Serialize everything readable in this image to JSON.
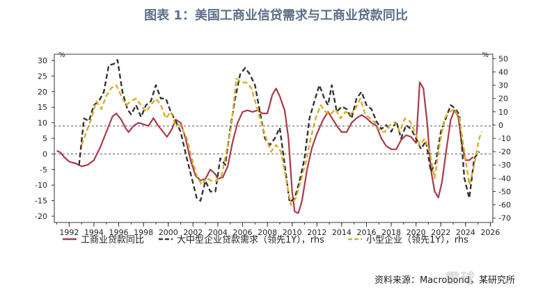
{
  "title": "图表 1：美国工商业信贷需求与工商业贷款同比",
  "source": "资料来源：Macrobond，某研究所",
  "watermark": "雪球",
  "chart_data": {
    "type": "line",
    "left_axis": {
      "unit": "%",
      "ylim": [
        -22,
        32
      ],
      "ticks": [
        -20,
        -15,
        -10,
        -5,
        0,
        5,
        10,
        15,
        20,
        25,
        30
      ]
    },
    "right_axis": {
      "unit": "%",
      "ylim": [
        -73.3,
        53.3
      ],
      "ticks": [
        -70,
        -60,
        -50,
        -40,
        -30,
        -20,
        -10,
        0,
        10,
        20,
        30,
        40,
        50
      ]
    },
    "xlim": [
      1990.8,
      2026.2
    ],
    "xticks": [
      1992,
      1994,
      1996,
      1998,
      2000,
      2002,
      2004,
      2006,
      2008,
      2010,
      2012,
      2014,
      2016,
      2018,
      2020,
      2022,
      2024,
      2026
    ],
    "reference_lines": [
      {
        "axis": "left",
        "y": 0
      },
      {
        "axis": "left",
        "y": 9
      }
    ],
    "series": [
      {
        "name": "工商业贷款同比",
        "axis": "left",
        "color": "#a83a4a",
        "style": "solid",
        "points": [
          [
            1991.0,
            1.0
          ],
          [
            1991.3,
            0.5
          ],
          [
            1991.6,
            -1.0
          ],
          [
            1992.0,
            -2.5
          ],
          [
            1992.5,
            -3.0
          ],
          [
            1993.0,
            -4.0
          ],
          [
            1993.5,
            -3.5
          ],
          [
            1994.0,
            -2.0
          ],
          [
            1994.5,
            2.0
          ],
          [
            1995.0,
            7.0
          ],
          [
            1995.5,
            12.0
          ],
          [
            1995.8,
            13.0
          ],
          [
            1996.2,
            11.0
          ],
          [
            1996.6,
            8.0
          ],
          [
            1996.8,
            7.0
          ],
          [
            1997.2,
            9.0
          ],
          [
            1997.6,
            10.0
          ],
          [
            1998.0,
            9.5
          ],
          [
            1998.4,
            9.0
          ],
          [
            1998.8,
            11.5
          ],
          [
            1999.2,
            9.0
          ],
          [
            1999.6,
            7.0
          ],
          [
            1999.9,
            5.5
          ],
          [
            2000.3,
            8.0
          ],
          [
            2000.6,
            11.0
          ],
          [
            2001.0,
            10.0
          ],
          [
            2001.4,
            5.0
          ],
          [
            2001.8,
            -2.0
          ],
          [
            2002.2,
            -7.0
          ],
          [
            2002.6,
            -8.5
          ],
          [
            2003.0,
            -8.0
          ],
          [
            2003.4,
            -5.0
          ],
          [
            2003.8,
            -6.5
          ],
          [
            2004.0,
            -8.0
          ],
          [
            2004.4,
            -7.5
          ],
          [
            2004.8,
            -4.0
          ],
          [
            2005.2,
            4.0
          ],
          [
            2005.6,
            10.0
          ],
          [
            2006.0,
            13.5
          ],
          [
            2006.4,
            14.0
          ],
          [
            2006.8,
            13.5
          ],
          [
            2007.2,
            14.0
          ],
          [
            2007.6,
            13.0
          ],
          [
            2008.0,
            13.0
          ],
          [
            2008.4,
            19.0
          ],
          [
            2008.7,
            21.0
          ],
          [
            2009.0,
            18.5
          ],
          [
            2009.4,
            14.0
          ],
          [
            2009.7,
            5.0
          ],
          [
            2010.0,
            -12.0
          ],
          [
            2010.2,
            -18.5
          ],
          [
            2010.5,
            -19.0
          ],
          [
            2010.8,
            -15.0
          ],
          [
            2011.2,
            -5.0
          ],
          [
            2011.6,
            2.0
          ],
          [
            2012.0,
            6.5
          ],
          [
            2012.5,
            11.0
          ],
          [
            2012.9,
            13.5
          ],
          [
            2013.3,
            11.0
          ],
          [
            2013.7,
            8.5
          ],
          [
            2014.0,
            7.0
          ],
          [
            2014.4,
            7.0
          ],
          [
            2014.8,
            10.0
          ],
          [
            2015.2,
            11.5
          ],
          [
            2015.6,
            12.5
          ],
          [
            2016.0,
            11.5
          ],
          [
            2016.4,
            10.0
          ],
          [
            2016.8,
            9.0
          ],
          [
            2017.2,
            5.0
          ],
          [
            2017.6,
            2.5
          ],
          [
            2018.0,
            1.5
          ],
          [
            2018.4,
            1.5
          ],
          [
            2018.8,
            4.5
          ],
          [
            2019.2,
            6.0
          ],
          [
            2019.6,
            5.5
          ],
          [
            2020.0,
            3.5
          ],
          [
            2020.3,
            23.0
          ],
          [
            2020.6,
            21.0
          ],
          [
            2020.9,
            10.0
          ],
          [
            2021.2,
            -5.0
          ],
          [
            2021.5,
            -12.0
          ],
          [
            2021.8,
            -14.0
          ],
          [
            2022.1,
            -9.0
          ],
          [
            2022.4,
            0.0
          ],
          [
            2022.8,
            11.0
          ],
          [
            2023.1,
            14.0
          ],
          [
            2023.4,
            12.0
          ],
          [
            2023.7,
            3.0
          ],
          [
            2024.0,
            -2.0
          ],
          [
            2024.3,
            -2.0
          ],
          [
            2024.6,
            -1.0
          ]
        ]
      },
      {
        "name": "大中型企业贷款需求（领先1Y），rhs",
        "axis": "right",
        "color": "#333333",
        "style": "dashed",
        "points": [
          [
            1992.8,
            -30.0
          ],
          [
            1993.2,
            5.0
          ],
          [
            1993.6,
            3.0
          ],
          [
            1994.0,
            15.0
          ],
          [
            1994.4,
            18.0
          ],
          [
            1994.8,
            25.0
          ],
          [
            1995.2,
            45.0
          ],
          [
            1995.6,
            46.0
          ],
          [
            1995.9,
            49.0
          ],
          [
            1996.3,
            25.0
          ],
          [
            1996.7,
            12.0
          ],
          [
            1997.0,
            8.0
          ],
          [
            1997.4,
            15.0
          ],
          [
            1997.8,
            6.0
          ],
          [
            1998.2,
            15.0
          ],
          [
            1998.6,
            18.0
          ],
          [
            1999.0,
            30.0
          ],
          [
            1999.4,
            20.0
          ],
          [
            1999.8,
            20.0
          ],
          [
            2000.2,
            10.0
          ],
          [
            2000.6,
            3.0
          ],
          [
            2001.0,
            -5.0
          ],
          [
            2001.5,
            -25.0
          ],
          [
            2001.9,
            -40.0
          ],
          [
            2002.3,
            -55.0
          ],
          [
            2002.6,
            -57.0
          ],
          [
            2003.0,
            -42.0
          ],
          [
            2003.4,
            -50.0
          ],
          [
            2003.8,
            -50.0
          ],
          [
            2004.2,
            -25.0
          ],
          [
            2004.6,
            -30.0
          ],
          [
            2005.0,
            -3.0
          ],
          [
            2005.4,
            20.0
          ],
          [
            2005.8,
            38.0
          ],
          [
            2006.2,
            43.0
          ],
          [
            2006.6,
            38.0
          ],
          [
            2007.0,
            30.0
          ],
          [
            2007.4,
            10.0
          ],
          [
            2007.8,
            -10.0
          ],
          [
            2008.2,
            -15.0
          ],
          [
            2008.6,
            -10.0
          ],
          [
            2009.0,
            -2.0
          ],
          [
            2009.4,
            -30.0
          ],
          [
            2009.8,
            -58.0
          ],
          [
            2010.2,
            -55.0
          ],
          [
            2010.6,
            -42.0
          ],
          [
            2011.0,
            -25.0
          ],
          [
            2011.4,
            5.0
          ],
          [
            2011.8,
            18.0
          ],
          [
            2012.2,
            30.0
          ],
          [
            2012.6,
            20.0
          ],
          [
            2012.9,
            15.0
          ],
          [
            2013.2,
            30.0
          ],
          [
            2013.6,
            10.0
          ],
          [
            2014.0,
            14.0
          ],
          [
            2014.4,
            12.0
          ],
          [
            2014.8,
            5.0
          ],
          [
            2015.2,
            20.0
          ],
          [
            2015.6,
            25.0
          ],
          [
            2016.0,
            15.0
          ],
          [
            2016.4,
            12.0
          ],
          [
            2016.8,
            3.0
          ],
          [
            2017.2,
            -3.0
          ],
          [
            2017.6,
            0.0
          ],
          [
            2018.0,
            -5.0
          ],
          [
            2018.4,
            3.0
          ],
          [
            2018.8,
            -10.0
          ],
          [
            2019.2,
            0.0
          ],
          [
            2019.6,
            -3.0
          ],
          [
            2020.0,
            -10.0
          ],
          [
            2020.4,
            -18.0
          ],
          [
            2020.8,
            -12.0
          ],
          [
            2021.2,
            -35.0
          ],
          [
            2021.6,
            -28.0
          ],
          [
            2022.0,
            -5.0
          ],
          [
            2022.4,
            5.0
          ],
          [
            2022.8,
            15.0
          ],
          [
            2023.1,
            13.0
          ],
          [
            2023.5,
            8.0
          ],
          [
            2023.9,
            -40.0
          ],
          [
            2024.3,
            -55.0
          ],
          [
            2024.7,
            -25.0
          ],
          [
            2025.1,
            -20.0
          ]
        ]
      },
      {
        "name": "小型企业（领先1Y），rhs",
        "axis": "right",
        "color": "#d9ad2a",
        "style": "dashed",
        "points": [
          [
            1993.0,
            -15.0
          ],
          [
            1993.4,
            -5.0
          ],
          [
            1993.8,
            5.0
          ],
          [
            1994.2,
            18.0
          ],
          [
            1994.6,
            12.0
          ],
          [
            1995.0,
            22.0
          ],
          [
            1995.4,
            28.0
          ],
          [
            1995.8,
            30.0
          ],
          [
            1996.2,
            22.0
          ],
          [
            1996.6,
            15.0
          ],
          [
            1997.0,
            18.0
          ],
          [
            1997.4,
            20.0
          ],
          [
            1997.8,
            15.0
          ],
          [
            1998.2,
            10.0
          ],
          [
            1998.6,
            15.0
          ],
          [
            1999.0,
            20.0
          ],
          [
            1999.4,
            15.0
          ],
          [
            1999.8,
            5.0
          ],
          [
            2000.2,
            10.0
          ],
          [
            2000.6,
            0.0
          ],
          [
            2001.0,
            0.0
          ],
          [
            2001.5,
            -10.0
          ],
          [
            2001.9,
            -25.0
          ],
          [
            2002.3,
            -38.0
          ],
          [
            2002.7,
            -45.0
          ],
          [
            2003.1,
            -40.0
          ],
          [
            2003.5,
            -42.0
          ],
          [
            2003.9,
            -42.0
          ],
          [
            2004.3,
            -38.0
          ],
          [
            2004.7,
            -20.0
          ],
          [
            2005.1,
            0.0
          ],
          [
            2005.5,
            35.0
          ],
          [
            2005.9,
            32.0
          ],
          [
            2006.3,
            32.0
          ],
          [
            2006.7,
            28.0
          ],
          [
            2007.1,
            15.0
          ],
          [
            2007.5,
            2.0
          ],
          [
            2007.9,
            -10.0
          ],
          [
            2008.3,
            -20.0
          ],
          [
            2008.7,
            -15.0
          ],
          [
            2009.1,
            -20.0
          ],
          [
            2009.5,
            -40.0
          ],
          [
            2009.9,
            -60.0
          ],
          [
            2010.3,
            -55.0
          ],
          [
            2010.7,
            -42.0
          ],
          [
            2011.1,
            -28.0
          ],
          [
            2011.5,
            -10.0
          ],
          [
            2011.9,
            5.0
          ],
          [
            2012.3,
            15.0
          ],
          [
            2012.7,
            10.0
          ],
          [
            2013.1,
            8.0
          ],
          [
            2013.5,
            12.0
          ],
          [
            2013.9,
            5.0
          ],
          [
            2014.3,
            10.0
          ],
          [
            2014.7,
            8.0
          ],
          [
            2015.1,
            12.0
          ],
          [
            2015.5,
            20.0
          ],
          [
            2015.9,
            8.0
          ],
          [
            2016.3,
            5.0
          ],
          [
            2016.7,
            2.0
          ],
          [
            2017.1,
            -5.0
          ],
          [
            2017.5,
            -5.0
          ],
          [
            2017.9,
            0.0
          ],
          [
            2018.3,
            2.0
          ],
          [
            2018.7,
            -5.0
          ],
          [
            2019.1,
            5.0
          ],
          [
            2019.5,
            3.0
          ],
          [
            2019.9,
            -5.0
          ],
          [
            2020.3,
            -15.0
          ],
          [
            2020.7,
            -10.0
          ],
          [
            2021.1,
            -20.0
          ],
          [
            2021.5,
            -40.0
          ],
          [
            2021.9,
            -15.0
          ],
          [
            2022.3,
            5.0
          ],
          [
            2022.7,
            10.0
          ],
          [
            2023.1,
            12.0
          ],
          [
            2023.5,
            5.0
          ],
          [
            2023.9,
            -20.0
          ],
          [
            2024.3,
            -45.0
          ],
          [
            2024.7,
            -30.0
          ],
          [
            2025.1,
            -10.0
          ],
          [
            2025.3,
            -5.0
          ]
        ]
      }
    ]
  }
}
